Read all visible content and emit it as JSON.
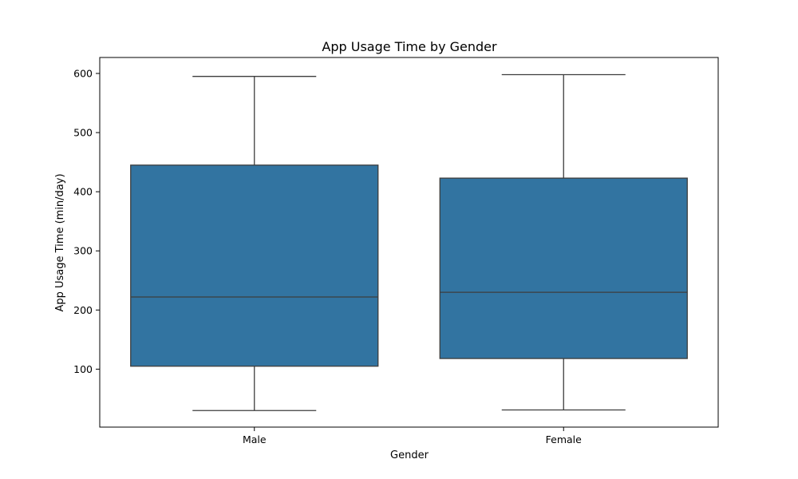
{
  "chart_data": {
    "type": "box",
    "title": "App Usage Time by Gender",
    "xlabel": "Gender",
    "ylabel": "App Usage Time (min/day)",
    "categories": [
      "Male",
      "Female"
    ],
    "boxes": [
      {
        "category": "Male",
        "whisker_low": 30,
        "q1": 105,
        "median": 222,
        "q3": 445,
        "whisker_high": 595
      },
      {
        "category": "Female",
        "whisker_low": 31,
        "q1": 118,
        "median": 230,
        "q3": 423,
        "whisker_high": 598
      }
    ],
    "yticks": [
      100,
      200,
      300,
      400,
      500,
      600
    ],
    "ylim": [
      2,
      627
    ],
    "grid": false,
    "legend": "none",
    "colors": {
      "box_fill": "#3274a1",
      "line": "#3d3d3d"
    }
  }
}
